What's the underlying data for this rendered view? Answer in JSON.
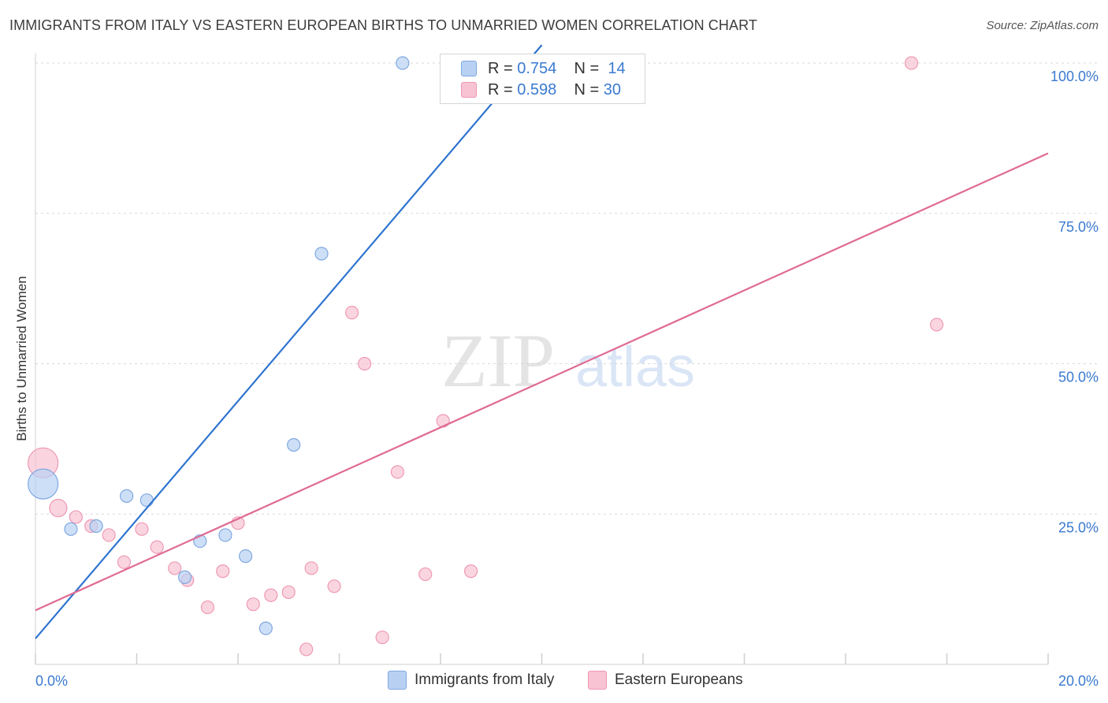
{
  "title": "IMMIGRANTS FROM ITALY VS EASTERN EUROPEAN BIRTHS TO UNMARRIED WOMEN CORRELATION CHART",
  "source": "Source: ZipAtlas.com",
  "watermark": {
    "zip": "ZIP",
    "atlas": "atlas"
  },
  "legend": {
    "rows": [
      {
        "r_label": "R = ",
        "r_value": "0.754",
        "n_label": "N = ",
        "n_value": "14",
        "color": "#a9c7f0"
      },
      {
        "r_label": "R = ",
        "r_value": "0.598",
        "n_label": "N = ",
        "n_value": "30",
        "color": "#f6b6c9"
      }
    ]
  },
  "colors": {
    "blue_fill": "#b8d1f3",
    "blue_stroke": "#7fa8e0",
    "blue_line": "#2f74d0",
    "pink_fill": "#f8c3d3",
    "pink_stroke": "#ee9ab4",
    "pink_line": "#e06a93",
    "tick_text": "#3a7ad0",
    "grid": "#d9d9d9"
  },
  "chart_data": {
    "type": "scatter",
    "xlabel": "",
    "ylabel": "Births to Unmarried Women",
    "xlim": [
      0,
      20
    ],
    "ylim": [
      0,
      103
    ],
    "x_tick_labels": [
      {
        "value": 0,
        "label": "0.0%"
      },
      {
        "value": 20,
        "label": "20.0%"
      }
    ],
    "y_tick_labels": [
      {
        "value": 25,
        "label": "25.0%"
      },
      {
        "value": 50,
        "label": "50.0%"
      },
      {
        "value": 75,
        "label": "75.0%"
      },
      {
        "value": 100,
        "label": "100.0%"
      }
    ],
    "grid": "horizontal dashed",
    "series": [
      {
        "name": "Immigrants from Italy",
        "color": "#b8d1f3",
        "points": [
          {
            "x": 0.15,
            "y": 30.0,
            "size": "large"
          },
          {
            "x": 0.7,
            "y": 22.5
          },
          {
            "x": 1.2,
            "y": 23.0
          },
          {
            "x": 1.8,
            "y": 28.0
          },
          {
            "x": 2.2,
            "y": 27.3
          },
          {
            "x": 2.95,
            "y": 14.5
          },
          {
            "x": 3.25,
            "y": 20.5
          },
          {
            "x": 3.75,
            "y": 21.5
          },
          {
            "x": 4.15,
            "y": 18.0
          },
          {
            "x": 4.55,
            "y": 6.0
          },
          {
            "x": 5.1,
            "y": 36.5
          },
          {
            "x": 5.65,
            "y": 68.3
          },
          {
            "x": 7.25,
            "y": 100.0
          },
          {
            "x": 9.3,
            "y": 100.0
          }
        ],
        "trendline": {
          "x": [
            0,
            10.0
          ],
          "y": [
            4.3,
            103.0
          ]
        }
      },
      {
        "name": "Eastern Europeans",
        "color": "#f8c3d3",
        "points": [
          {
            "x": 0.15,
            "y": 33.5,
            "size": "large"
          },
          {
            "x": 0.45,
            "y": 26.0,
            "size": "medium"
          },
          {
            "x": 0.8,
            "y": 24.5
          },
          {
            "x": 1.1,
            "y": 23.0
          },
          {
            "x": 1.45,
            "y": 21.5
          },
          {
            "x": 1.75,
            "y": 17.0
          },
          {
            "x": 2.1,
            "y": 22.5
          },
          {
            "x": 2.4,
            "y": 19.5
          },
          {
            "x": 2.75,
            "y": 16.0
          },
          {
            "x": 3.0,
            "y": 14.0
          },
          {
            "x": 3.4,
            "y": 9.5
          },
          {
            "x": 3.7,
            "y": 15.5
          },
          {
            "x": 4.0,
            "y": 23.5
          },
          {
            "x": 4.3,
            "y": 10.0
          },
          {
            "x": 4.65,
            "y": 11.5
          },
          {
            "x": 5.0,
            "y": 12.0
          },
          {
            "x": 5.35,
            "y": 2.5
          },
          {
            "x": 5.45,
            "y": 16.0
          },
          {
            "x": 5.9,
            "y": 13.0
          },
          {
            "x": 6.25,
            "y": 58.5
          },
          {
            "x": 6.5,
            "y": 50.0
          },
          {
            "x": 6.85,
            "y": 4.5
          },
          {
            "x": 7.15,
            "y": 32.0
          },
          {
            "x": 7.7,
            "y": 15.0
          },
          {
            "x": 8.05,
            "y": 40.5
          },
          {
            "x": 8.6,
            "y": 15.5
          },
          {
            "x": 9.3,
            "y": 100.0
          },
          {
            "x": 10.3,
            "y": 100.0
          },
          {
            "x": 17.3,
            "y": 100.0
          },
          {
            "x": 17.8,
            "y": 56.5
          }
        ],
        "trendline": {
          "x": [
            0,
            20.0
          ],
          "y": [
            9.0,
            85.0
          ]
        }
      }
    ]
  }
}
